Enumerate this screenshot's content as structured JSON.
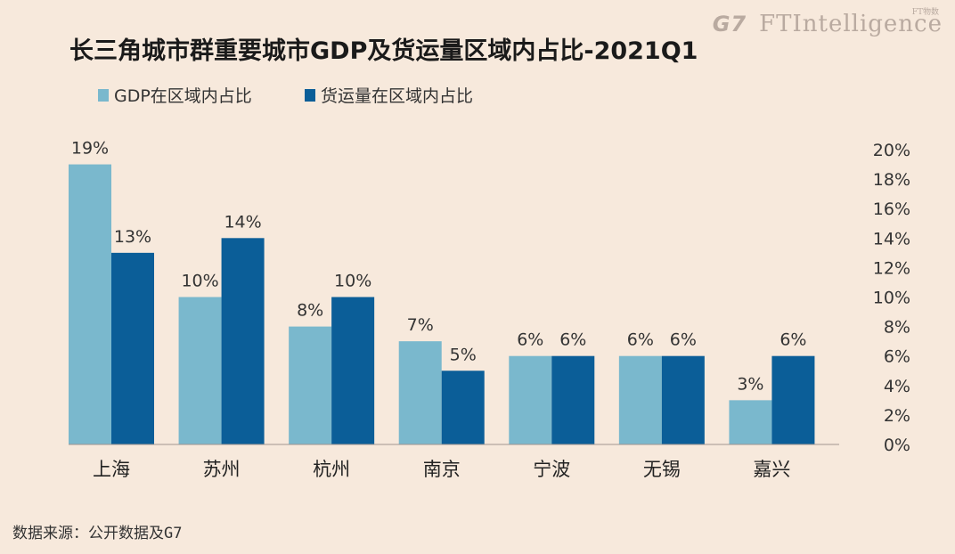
{
  "brand": {
    "g7": "G7",
    "name": "FTIntelligence",
    "sub": "FT物数"
  },
  "footer": {
    "source": "数据来源：公开数据及G7"
  },
  "chart_data": {
    "type": "bar",
    "title": "长三角城市群重要城市GDP及货运量区域内占比-2021Q1",
    "categories": [
      "上海",
      "苏州",
      "杭州",
      "南京",
      "宁波",
      "无锡",
      "嘉兴"
    ],
    "series": [
      {
        "name": "GDP在区域内占比",
        "values": [
          19,
          10,
          8,
          7,
          6,
          6,
          3
        ],
        "labels": [
          "19%",
          "10%",
          "8%",
          "7%",
          "6%",
          "6%",
          "3%"
        ],
        "color": "#7ab8cd"
      },
      {
        "name": "货运量在区域内占比",
        "values": [
          13,
          14,
          10,
          5,
          6,
          6,
          6
        ],
        "labels": [
          "13%",
          "14%",
          "10%",
          "5%",
          "6%",
          "6%",
          "6%"
        ],
        "color": "#0b5e98"
      }
    ],
    "ylim": [
      0,
      20
    ],
    "yticks": [
      "0%",
      "2%",
      "4%",
      "6%",
      "8%",
      "10%",
      "12%",
      "14%",
      "16%",
      "18%",
      "20%"
    ],
    "legend": "top-left",
    "grid": false
  }
}
